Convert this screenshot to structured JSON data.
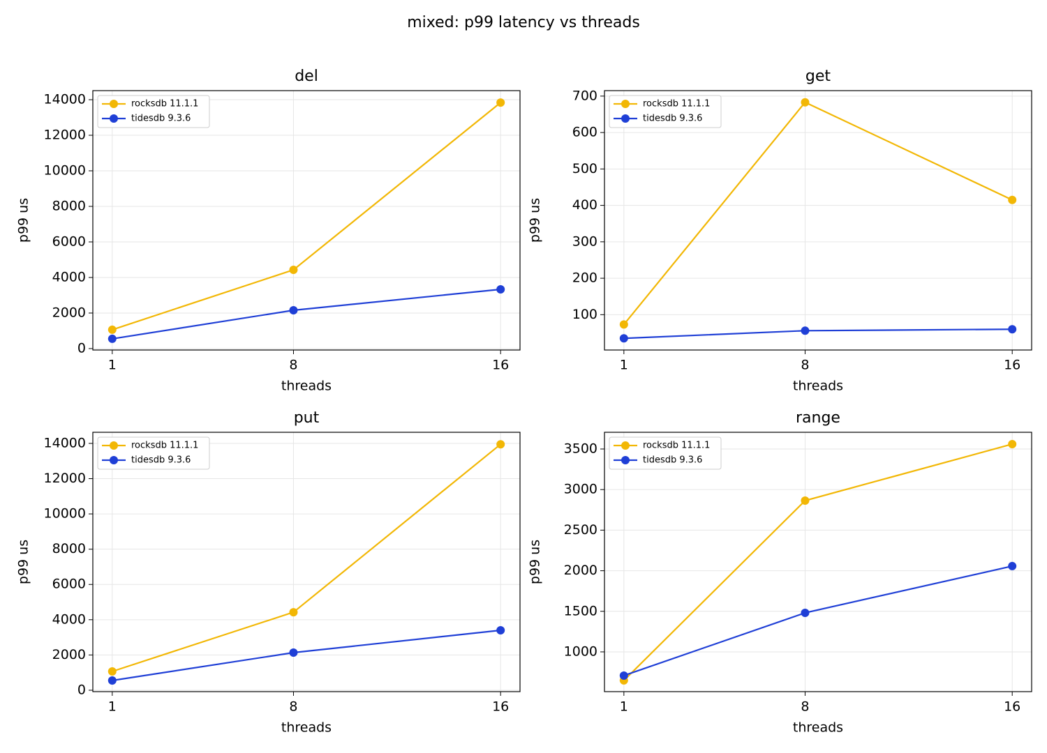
{
  "title": "mixed: p99 latency vs threads",
  "chart_data": [
    {
      "type": "line",
      "title": "del",
      "xlabel": "threads",
      "ylabel": "p99 us",
      "x": [
        1,
        8,
        16
      ],
      "xlim": [
        0.25,
        16.75
      ],
      "xticks": [
        1,
        8,
        16
      ],
      "ylim": [
        -80,
        14510
      ],
      "yticks": [
        0,
        2000,
        4000,
        6000,
        8000,
        10000,
        12000,
        14000
      ],
      "grid": true,
      "legend": "upper left",
      "series": [
        {
          "name": "rocksdb 11.1.1",
          "color": "#f2b705",
          "values": [
            1060,
            4430,
            13840
          ]
        },
        {
          "name": "tidesdb 9.3.6",
          "color": "#1f3fd6",
          "values": [
            550,
            2156,
            3333
          ]
        }
      ]
    },
    {
      "type": "line",
      "title": "get",
      "xlabel": "threads",
      "ylabel": "p99 us",
      "x": [
        1,
        8,
        16
      ],
      "xlim": [
        0.25,
        16.75
      ],
      "xticks": [
        1,
        8,
        16
      ],
      "ylim": [
        3,
        715
      ],
      "yticks": [
        100,
        200,
        300,
        400,
        500,
        600,
        700
      ],
      "grid": true,
      "legend": "upper left",
      "series": [
        {
          "name": "rocksdb 11.1.1",
          "color": "#f2b705",
          "values": [
            73,
            683,
            415
          ]
        },
        {
          "name": "tidesdb 9.3.6",
          "color": "#1f3fd6",
          "values": [
            35,
            56,
            60
          ]
        }
      ]
    },
    {
      "type": "line",
      "title": "put",
      "xlabel": "threads",
      "ylabel": "p99 us",
      "x": [
        1,
        8,
        16
      ],
      "xlim": [
        0.25,
        16.75
      ],
      "xticks": [
        1,
        8,
        16
      ],
      "ylim": [
        -80,
        14630
      ],
      "yticks": [
        0,
        2000,
        4000,
        6000,
        8000,
        10000,
        12000,
        14000
      ],
      "grid": true,
      "legend": "upper left",
      "series": [
        {
          "name": "rocksdb 11.1.1",
          "color": "#f2b705",
          "values": [
            1067,
            4425,
            13950
          ]
        },
        {
          "name": "tidesdb 9.3.6",
          "color": "#1f3fd6",
          "values": [
            553,
            2134,
            3400
          ]
        }
      ]
    },
    {
      "type": "line",
      "title": "range",
      "xlabel": "threads",
      "ylabel": "p99 us",
      "x": [
        1,
        8,
        16
      ],
      "xlim": [
        0.25,
        16.75
      ],
      "xticks": [
        1,
        8,
        16
      ],
      "ylim": [
        510,
        3706
      ],
      "yticks": [
        1000,
        1500,
        2000,
        2500,
        3000,
        3500
      ],
      "grid": true,
      "legend": "upper left",
      "series": [
        {
          "name": "rocksdb 11.1.1",
          "color": "#f2b705",
          "values": [
            648,
            2864,
            3560
          ]
        },
        {
          "name": "tidesdb 9.3.6",
          "color": "#1f3fd6",
          "values": [
            708,
            1481,
            2057
          ]
        }
      ]
    }
  ]
}
